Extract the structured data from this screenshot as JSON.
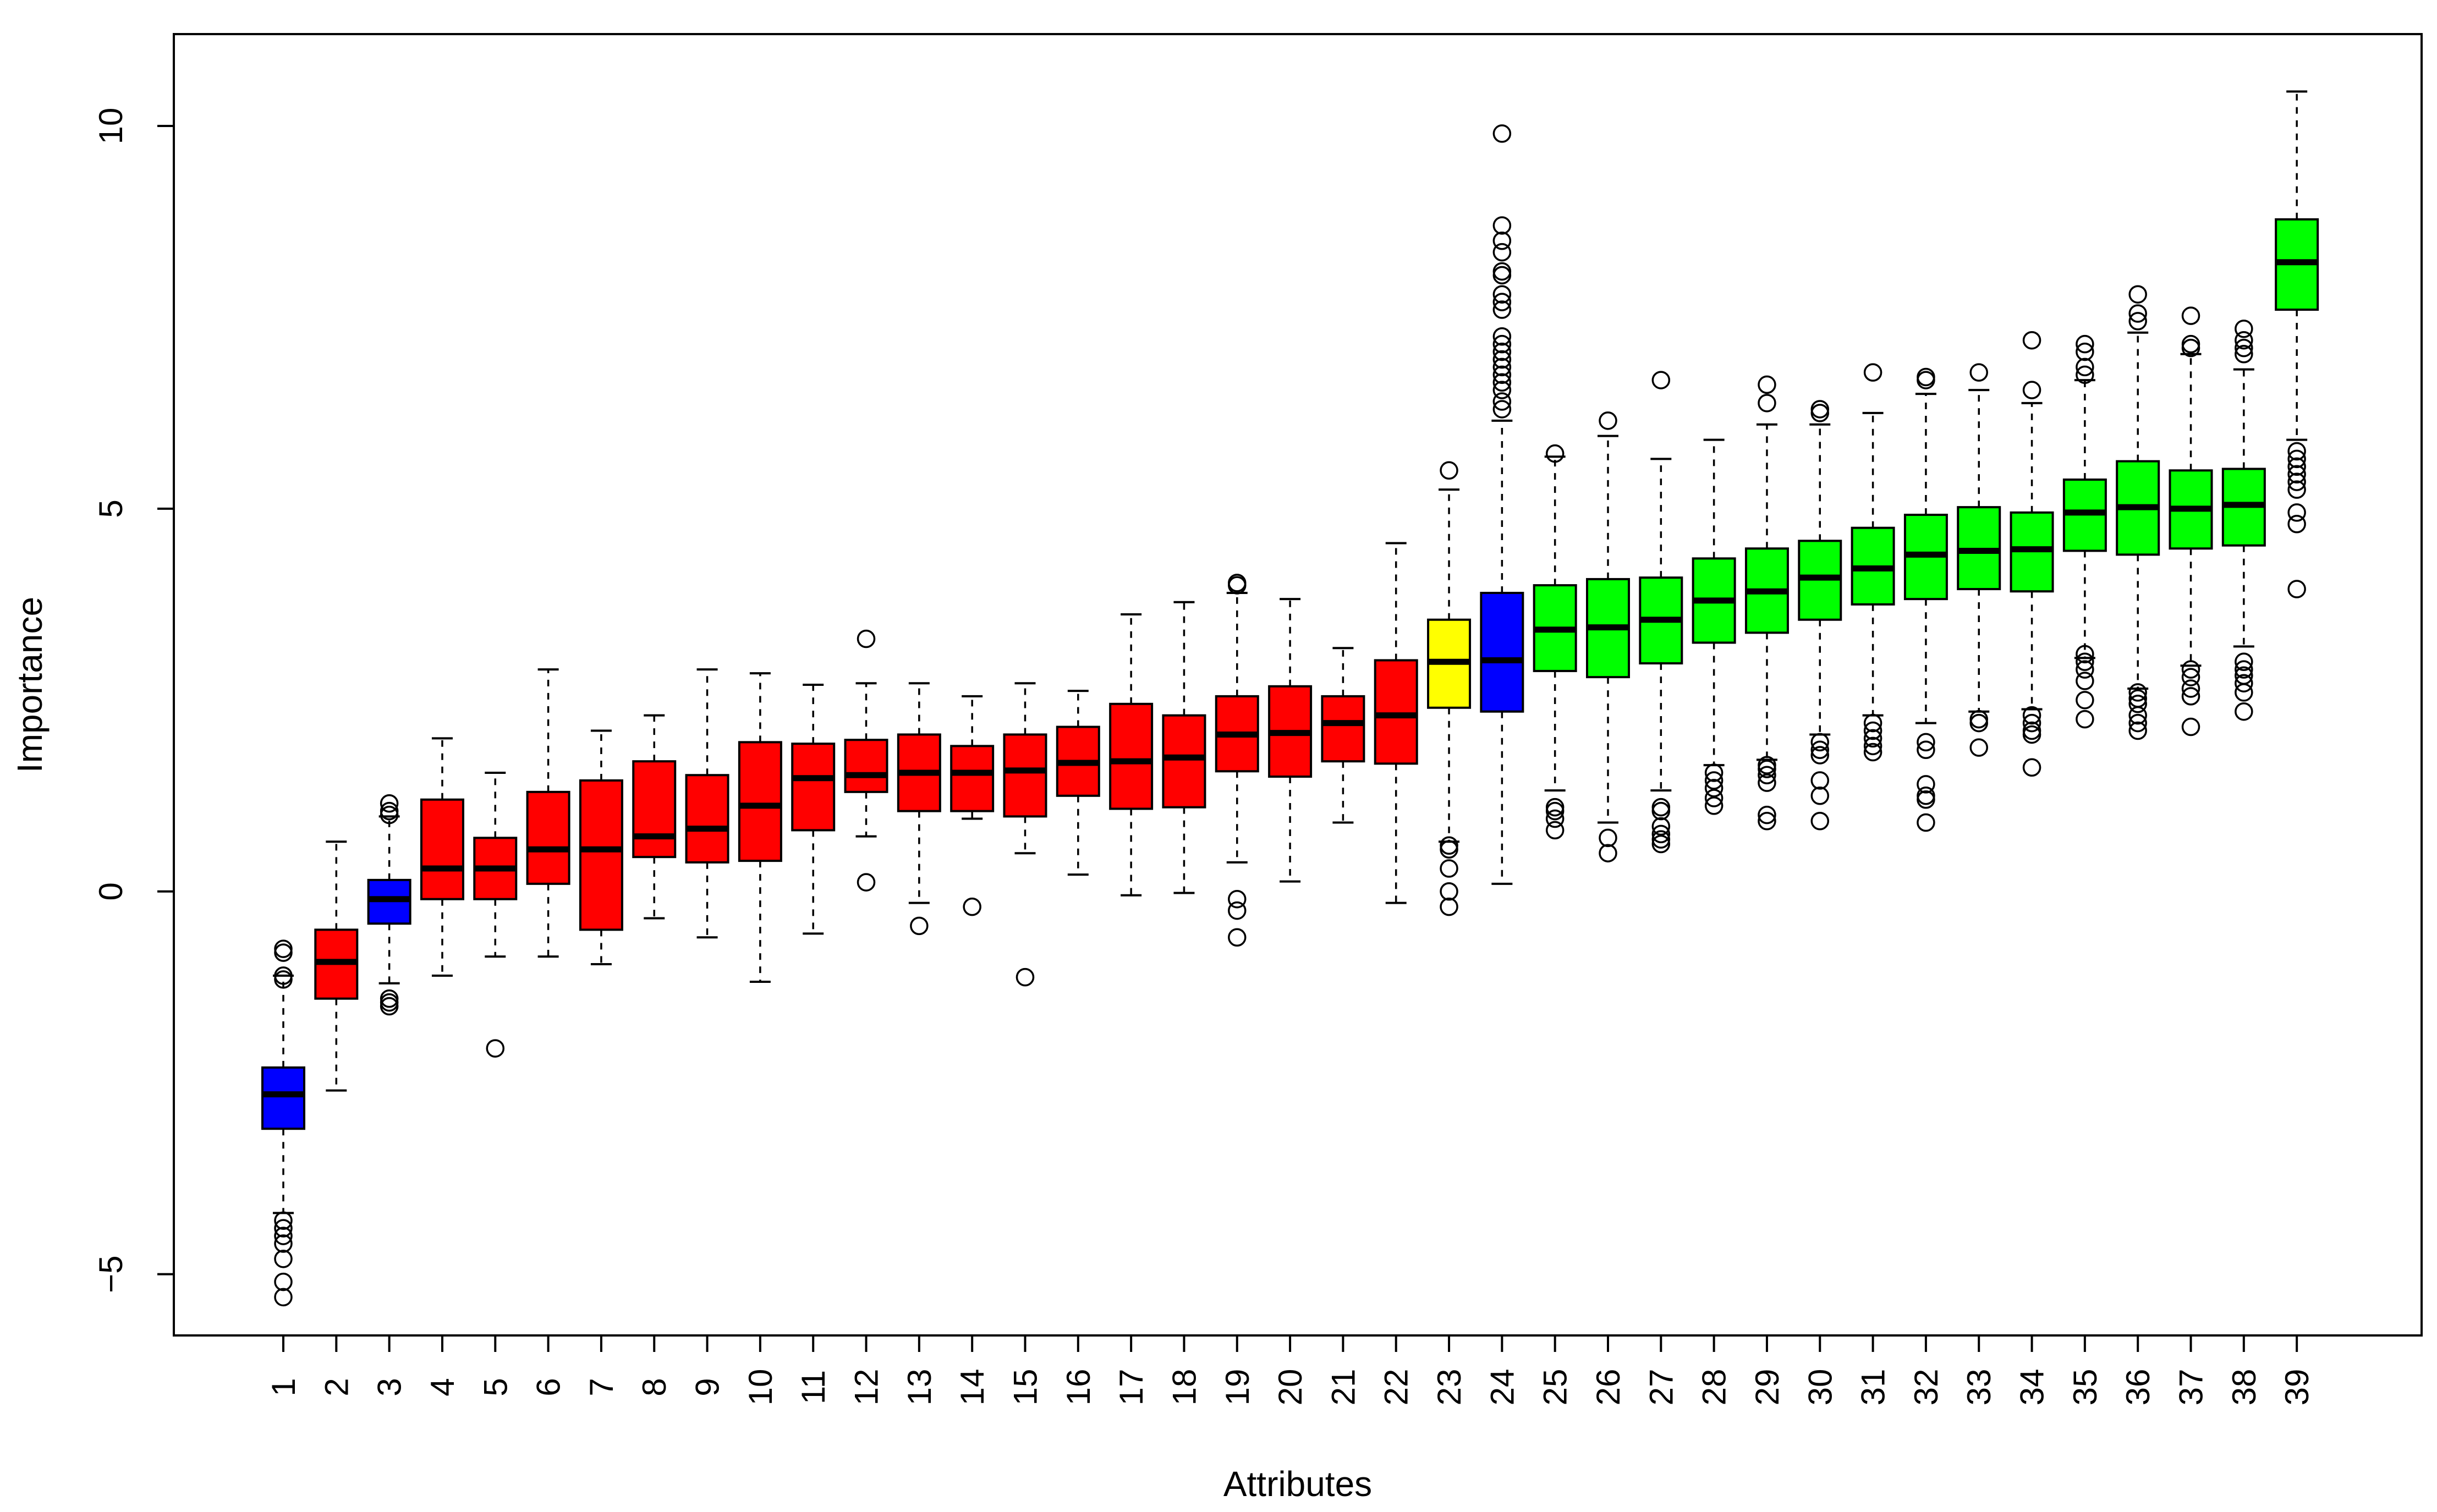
{
  "chart_data": {
    "type": "boxplot",
    "xlabel": "Attributes",
    "ylabel": "Importance",
    "ylim": [
      -5.8,
      11.2
    ],
    "yticks": [
      -5,
      0,
      5,
      10
    ],
    "grid": false,
    "legend": "none",
    "colors": {
      "rejected": "#ff0000",
      "shadow": "#0000ff",
      "tentative": "#ffff00",
      "confirmed": "#00ff00"
    },
    "categories": [
      "1",
      "2",
      "3",
      "4",
      "5",
      "6",
      "7",
      "8",
      "9",
      "10",
      "11",
      "12",
      "13",
      "14",
      "15",
      "16",
      "17",
      "18",
      "19",
      "20",
      "21",
      "22",
      "23",
      "24",
      "25",
      "26",
      "27",
      "28",
      "29",
      "30",
      "31",
      "32",
      "33",
      "34",
      "35",
      "36",
      "37",
      "38",
      "39"
    ],
    "boxes": [
      {
        "label": "1",
        "status": "shadow",
        "lw": -4.2,
        "q1": -3.1,
        "median": -2.65,
        "q3": -2.3,
        "uw": -1.1,
        "outliers": [
          -0.75,
          -0.8,
          -1.1,
          -1.15,
          -4.3,
          -4.4,
          -4.5,
          -4.6,
          -4.8,
          -5.1,
          -5.3
        ]
      },
      {
        "label": "2",
        "status": "rejected",
        "lw": -2.6,
        "q1": -1.4,
        "median": -0.92,
        "q3": -0.5,
        "uw": 0.65,
        "outliers": []
      },
      {
        "label": "3",
        "status": "shadow",
        "lw": -1.2,
        "q1": -0.42,
        "median": -0.1,
        "q3": 0.15,
        "uw": 0.98,
        "outliers": [
          1.0,
          1.05,
          1.15,
          -1.4,
          -1.45,
          -1.5
        ]
      },
      {
        "label": "4",
        "status": "rejected",
        "lw": -1.1,
        "q1": -0.1,
        "median": 0.3,
        "q3": 1.2,
        "uw": 2.0,
        "outliers": []
      },
      {
        "label": "5",
        "status": "rejected",
        "lw": -0.85,
        "q1": -0.1,
        "median": 0.3,
        "q3": 0.7,
        "uw": 1.55,
        "outliers": [
          -2.05
        ]
      },
      {
        "label": "6",
        "status": "rejected",
        "lw": -0.85,
        "q1": 0.1,
        "median": 0.55,
        "q3": 1.3,
        "uw": 2.9,
        "outliers": []
      },
      {
        "label": "7",
        "status": "rejected",
        "lw": -0.95,
        "q1": -0.5,
        "median": 0.55,
        "q3": 1.45,
        "uw": 2.1,
        "outliers": []
      },
      {
        "label": "8",
        "status": "rejected",
        "lw": -0.35,
        "q1": 0.45,
        "median": 0.72,
        "q3": 1.7,
        "uw": 2.3,
        "outliers": []
      },
      {
        "label": "9",
        "status": "rejected",
        "lw": -0.6,
        "q1": 0.38,
        "median": 0.82,
        "q3": 1.52,
        "uw": 2.9,
        "outliers": []
      },
      {
        "label": "10",
        "status": "rejected",
        "lw": -1.18,
        "q1": 0.4,
        "median": 1.12,
        "q3": 1.95,
        "uw": 2.85,
        "outliers": []
      },
      {
        "label": "11",
        "status": "rejected",
        "lw": -0.55,
        "q1": 0.8,
        "median": 1.48,
        "q3": 1.93,
        "uw": 2.7,
        "outliers": []
      },
      {
        "label": "12",
        "status": "rejected",
        "lw": 0.72,
        "q1": 1.3,
        "median": 1.52,
        "q3": 1.98,
        "uw": 2.72,
        "outliers": [
          3.3,
          0.12
        ]
      },
      {
        "label": "13",
        "status": "rejected",
        "lw": -0.15,
        "q1": 1.05,
        "median": 1.55,
        "q3": 2.05,
        "uw": 2.72,
        "outliers": [
          -0.45
        ]
      },
      {
        "label": "14",
        "status": "rejected",
        "lw": 0.95,
        "q1": 1.05,
        "median": 1.55,
        "q3": 1.9,
        "uw": 2.55,
        "outliers": [
          -0.2
        ]
      },
      {
        "label": "15",
        "status": "rejected",
        "lw": 0.5,
        "q1": 0.98,
        "median": 1.58,
        "q3": 2.05,
        "uw": 2.72,
        "outliers": [
          -1.12
        ]
      },
      {
        "label": "16",
        "status": "rejected",
        "lw": 0.22,
        "q1": 1.25,
        "median": 1.68,
        "q3": 2.15,
        "uw": 2.62,
        "outliers": []
      },
      {
        "label": "17",
        "status": "rejected",
        "lw": -0.05,
        "q1": 1.08,
        "median": 1.7,
        "q3": 2.45,
        "uw": 3.62,
        "outliers": []
      },
      {
        "label": "18",
        "status": "rejected",
        "lw": -0.02,
        "q1": 1.1,
        "median": 1.75,
        "q3": 2.3,
        "uw": 3.78,
        "outliers": []
      },
      {
        "label": "19",
        "status": "rejected",
        "lw": 0.38,
        "q1": 1.57,
        "median": 2.05,
        "q3": 2.55,
        "uw": 3.9,
        "outliers": [
          4.0,
          4.03,
          -0.1,
          -0.25,
          -0.6
        ]
      },
      {
        "label": "20",
        "status": "rejected",
        "lw": 0.13,
        "q1": 1.5,
        "median": 2.07,
        "q3": 2.68,
        "uw": 3.82,
        "outliers": []
      },
      {
        "label": "21",
        "status": "rejected",
        "lw": 0.9,
        "q1": 1.7,
        "median": 2.2,
        "q3": 2.55,
        "uw": 3.18,
        "outliers": []
      },
      {
        "label": "22",
        "status": "rejected",
        "lw": -0.15,
        "q1": 1.67,
        "median": 2.3,
        "q3": 3.02,
        "uw": 4.55,
        "outliers": []
      },
      {
        "label": "23",
        "status": "tentative",
        "lw": 0.65,
        "q1": 2.4,
        "median": 3.0,
        "q3": 3.55,
        "uw": 5.25,
        "outliers": [
          5.5,
          0.6,
          0.55,
          0.3,
          0.0,
          -0.2
        ]
      },
      {
        "label": "24",
        "status": "shadow",
        "lw": 0.1,
        "q1": 2.35,
        "median": 3.02,
        "q3": 3.9,
        "uw": 6.15,
        "outliers": [
          9.9,
          8.7,
          8.5,
          8.35,
          8.1,
          8.05,
          7.8,
          7.7,
          7.6,
          7.25,
          7.15,
          7.05,
          6.95,
          6.85,
          6.75,
          6.65,
          6.55,
          6.4,
          6.3
        ]
      },
      {
        "label": "25",
        "status": "confirmed",
        "lw": 1.32,
        "q1": 2.88,
        "median": 3.42,
        "q3": 4.0,
        "uw": 5.68,
        "outliers": [
          5.72,
          1.1,
          1.05,
          0.95,
          0.8
        ]
      },
      {
        "label": "26",
        "status": "confirmed",
        "lw": 0.9,
        "q1": 2.8,
        "median": 3.45,
        "q3": 4.08,
        "uw": 5.95,
        "outliers": [
          6.15,
          0.7,
          0.5
        ]
      },
      {
        "label": "27",
        "status": "confirmed",
        "lw": 1.32,
        "q1": 2.98,
        "median": 3.55,
        "q3": 4.1,
        "uw": 5.65,
        "outliers": [
          6.68,
          1.1,
          1.05,
          0.85,
          0.75,
          0.68,
          0.62
        ]
      },
      {
        "label": "28",
        "status": "confirmed",
        "lw": 1.65,
        "q1": 3.25,
        "median": 3.8,
        "q3": 4.35,
        "uw": 5.9,
        "outliers": [
          1.55,
          1.45,
          1.35,
          1.22,
          1.12
        ]
      },
      {
        "label": "29",
        "status": "confirmed",
        "lw": 1.72,
        "q1": 3.38,
        "median": 3.92,
        "q3": 4.48,
        "uw": 6.1,
        "outliers": [
          6.62,
          6.38,
          1.65,
          1.6,
          1.52,
          1.42,
          1.0,
          0.92
        ]
      },
      {
        "label": "30",
        "status": "confirmed",
        "lw": 2.05,
        "q1": 3.55,
        "median": 4.1,
        "q3": 4.58,
        "uw": 6.1,
        "outliers": [
          6.3,
          6.25,
          1.95,
          1.85,
          1.78,
          1.45,
          1.25,
          0.92
        ]
      },
      {
        "label": "31",
        "status": "confirmed",
        "lw": 2.3,
        "q1": 3.75,
        "median": 4.22,
        "q3": 4.75,
        "uw": 6.25,
        "outliers": [
          6.78,
          2.2,
          2.1,
          2.0,
          1.9,
          1.82
        ]
      },
      {
        "label": "32",
        "status": "confirmed",
        "lw": 2.2,
        "q1": 3.82,
        "median": 4.4,
        "q3": 4.92,
        "uw": 6.5,
        "outliers": [
          6.72,
          6.68,
          1.95,
          1.85,
          1.4,
          1.25,
          1.2,
          0.9
        ]
      },
      {
        "label": "33",
        "status": "confirmed",
        "lw": 2.35,
        "q1": 3.95,
        "median": 4.45,
        "q3": 5.02,
        "uw": 6.55,
        "outliers": [
          6.78,
          2.25,
          2.2,
          1.88
        ]
      },
      {
        "label": "34",
        "status": "confirmed",
        "lw": 2.38,
        "q1": 3.92,
        "median": 4.47,
        "q3": 4.95,
        "uw": 6.38,
        "outliers": [
          7.2,
          6.55,
          2.3,
          2.2,
          2.1,
          2.05,
          1.62
        ]
      },
      {
        "label": "35",
        "status": "confirmed",
        "lw": 3.05,
        "q1": 4.45,
        "median": 4.95,
        "q3": 5.38,
        "uw": 6.68,
        "outliers": [
          7.15,
          7.05,
          6.85,
          6.75,
          3.1,
          3.0,
          2.9,
          2.75,
          2.5,
          2.25
        ]
      },
      {
        "label": "36",
        "status": "confirmed",
        "lw": 2.65,
        "q1": 4.4,
        "median": 5.02,
        "q3": 5.62,
        "uw": 7.3,
        "outliers": [
          7.8,
          7.55,
          7.45,
          2.6,
          2.52,
          2.45,
          2.3,
          2.2,
          2.1
        ]
      },
      {
        "label": "37",
        "status": "confirmed",
        "lw": 2.95,
        "q1": 4.48,
        "median": 5.0,
        "q3": 5.5,
        "uw": 7.02,
        "outliers": [
          7.52,
          7.15,
          7.1,
          2.9,
          2.8,
          2.65,
          2.55,
          2.15
        ]
      },
      {
        "label": "38",
        "status": "confirmed",
        "lw": 3.2,
        "q1": 4.52,
        "median": 5.05,
        "q3": 5.52,
        "uw": 6.82,
        "outliers": [
          7.35,
          7.2,
          7.1,
          7.02,
          3.0,
          2.9,
          2.82,
          2.72,
          2.6,
          2.35
        ]
      },
      {
        "label": "39",
        "status": "confirmed",
        "lw": 5.9,
        "q1": 7.6,
        "median": 8.22,
        "q3": 8.78,
        "uw": 10.45,
        "outliers": [
          5.75,
          5.65,
          5.55,
          5.45,
          5.35,
          5.25,
          4.95,
          4.8,
          3.95
        ]
      }
    ]
  }
}
